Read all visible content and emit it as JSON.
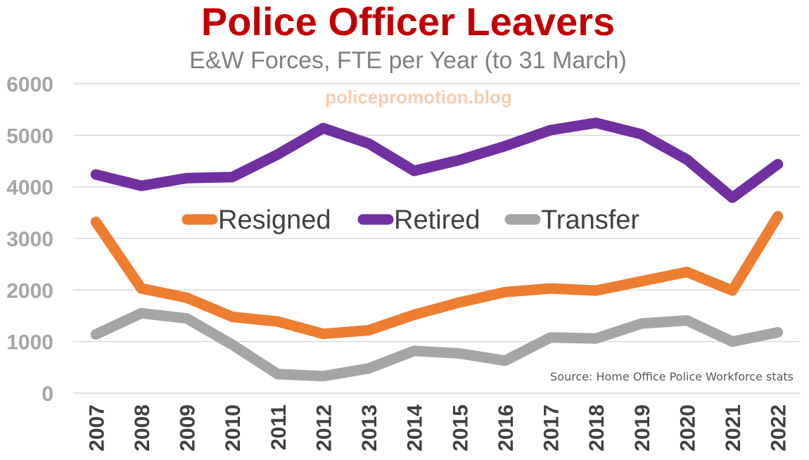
{
  "chart_data": {
    "type": "line",
    "title": "Police Officer Leavers",
    "subtitle": "E&W Forces, FTE per Year (to 31 March)",
    "watermark": "policepromotion.blog",
    "source": "Source: Home Office Police Workforce stats",
    "x": [
      "2007",
      "2008",
      "2009",
      "2010",
      "2011",
      "2012",
      "2013",
      "2014",
      "2015",
      "2016",
      "2017",
      "2018",
      "2019",
      "2020",
      "2021",
      "2022"
    ],
    "ylim": [
      0,
      6000
    ],
    "yticks": [
      "0",
      "1000",
      "2000",
      "3000",
      "4000",
      "5000",
      "6000"
    ],
    "grid": true,
    "legend_position": "center",
    "series": [
      {
        "name": "Resigned",
        "color": "#ed7d31",
        "values": [
          3320,
          2030,
          1850,
          1480,
          1390,
          1150,
          1220,
          1520,
          1760,
          1960,
          2030,
          1990,
          2170,
          2350,
          1990,
          3430
        ]
      },
      {
        "name": "Retired",
        "color": "#7030a0",
        "values": [
          4240,
          4020,
          4170,
          4190,
          4630,
          5140,
          4840,
          4310,
          4520,
          4790,
          5100,
          5240,
          5020,
          4530,
          3790,
          4440
        ]
      },
      {
        "name": "Transfer",
        "color": "#a5a5a5",
        "values": [
          1140,
          1550,
          1450,
          940,
          370,
          330,
          480,
          820,
          770,
          630,
          1080,
          1060,
          1350,
          1410,
          1000,
          1180
        ]
      }
    ],
    "colors": {
      "title": "#c00000",
      "subtitle": "#7f7f7f",
      "axis_text": "#a6a6a6",
      "gridline": "#d9d9d9",
      "watermark": "#f8cbad",
      "source": "#595959"
    }
  }
}
